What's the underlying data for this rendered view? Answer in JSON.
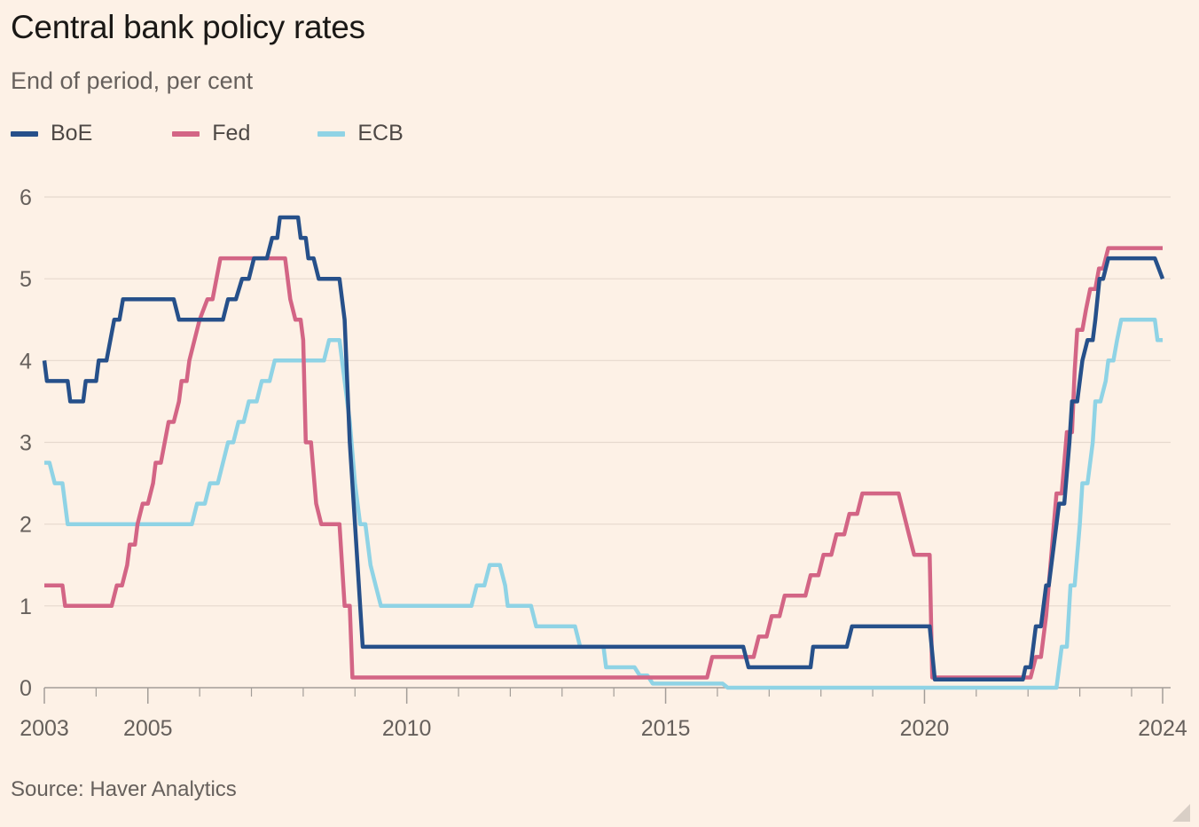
{
  "title": "Central bank policy rates",
  "subtitle": "End of period, per cent",
  "source": "Source: Haver Analytics",
  "colors": {
    "BoE": "#26508a",
    "Fed": "#d36585",
    "ECB": "#8fd3e5",
    "grid": "#e6d9ce",
    "axis": "#a39d98",
    "text": "#66605c"
  },
  "legend": [
    {
      "name": "BoE",
      "color": "#26508a"
    },
    {
      "name": "Fed",
      "color": "#d36585"
    },
    {
      "name": "ECB",
      "color": "#8fd3e5"
    }
  ],
  "chart_data": {
    "type": "line",
    "title": "Central bank policy rates",
    "subtitle": "End of period, per cent",
    "xlim": [
      2003.0,
      2024.6
    ],
    "ylim": [
      0,
      6
    ],
    "yticks": [
      0,
      1,
      2,
      3,
      4,
      5,
      6
    ],
    "xtick_labels": [
      "2003",
      "2005",
      "2010",
      "2015",
      "2020",
      "2024"
    ],
    "xtick_values": [
      2003.0,
      2005.0,
      2010.0,
      2015.0,
      2020.0,
      2024.6
    ],
    "minor_xticks": [
      2004,
      2006,
      2007,
      2008,
      2009,
      2011,
      2012,
      2013,
      2014,
      2016,
      2017,
      2018,
      2019,
      2021,
      2022,
      2023,
      2024
    ],
    "grid": true,
    "legend_position": "top-left",
    "series": [
      {
        "name": "BoE",
        "color": "#26508a",
        "points": [
          [
            2003.0,
            4.0
          ],
          [
            2003.05,
            3.75
          ],
          [
            2003.45,
            3.75
          ],
          [
            2003.5,
            3.5
          ],
          [
            2003.75,
            3.5
          ],
          [
            2003.8,
            3.75
          ],
          [
            2004.0,
            3.75
          ],
          [
            2004.05,
            4.0
          ],
          [
            2004.2,
            4.0
          ],
          [
            2004.35,
            4.5
          ],
          [
            2004.45,
            4.5
          ],
          [
            2004.52,
            4.75
          ],
          [
            2005.5,
            4.75
          ],
          [
            2005.6,
            4.5
          ],
          [
            2006.45,
            4.5
          ],
          [
            2006.55,
            4.75
          ],
          [
            2006.7,
            4.75
          ],
          [
            2006.82,
            5.0
          ],
          [
            2006.95,
            5.0
          ],
          [
            2007.05,
            5.25
          ],
          [
            2007.3,
            5.25
          ],
          [
            2007.4,
            5.5
          ],
          [
            2007.5,
            5.5
          ],
          [
            2007.55,
            5.75
          ],
          [
            2007.9,
            5.75
          ],
          [
            2007.95,
            5.5
          ],
          [
            2008.05,
            5.5
          ],
          [
            2008.1,
            5.25
          ],
          [
            2008.2,
            5.25
          ],
          [
            2008.3,
            5.0
          ],
          [
            2008.7,
            5.0
          ],
          [
            2008.8,
            4.5
          ],
          [
            2008.9,
            3.0
          ],
          [
            2009.0,
            2.0
          ],
          [
            2009.1,
            1.0
          ],
          [
            2009.15,
            0.5
          ],
          [
            2016.5,
            0.5
          ],
          [
            2016.6,
            0.25
          ],
          [
            2017.8,
            0.25
          ],
          [
            2017.85,
            0.5
          ],
          [
            2018.5,
            0.5
          ],
          [
            2018.6,
            0.75
          ],
          [
            2020.1,
            0.75
          ],
          [
            2020.2,
            0.1
          ],
          [
            2021.9,
            0.1
          ],
          [
            2021.95,
            0.25
          ],
          [
            2022.05,
            0.25
          ],
          [
            2022.1,
            0.5
          ],
          [
            2022.15,
            0.75
          ],
          [
            2022.25,
            0.75
          ],
          [
            2022.35,
            1.25
          ],
          [
            2022.4,
            1.25
          ],
          [
            2022.5,
            1.75
          ],
          [
            2022.6,
            2.25
          ],
          [
            2022.7,
            2.25
          ],
          [
            2022.8,
            3.0
          ],
          [
            2022.85,
            3.5
          ],
          [
            2022.95,
            3.5
          ],
          [
            2023.05,
            4.0
          ],
          [
            2023.15,
            4.25
          ],
          [
            2023.25,
            4.25
          ],
          [
            2023.3,
            4.5
          ],
          [
            2023.38,
            5.0
          ],
          [
            2023.45,
            5.0
          ],
          [
            2023.55,
            5.25
          ],
          [
            2024.45,
            5.25
          ],
          [
            2024.6,
            5.0
          ]
        ]
      },
      {
        "name": "Fed",
        "color": "#d36585",
        "points": [
          [
            2003.0,
            1.25
          ],
          [
            2003.35,
            1.25
          ],
          [
            2003.4,
            1.0
          ],
          [
            2004.3,
            1.0
          ],
          [
            2004.4,
            1.25
          ],
          [
            2004.5,
            1.25
          ],
          [
            2004.6,
            1.5
          ],
          [
            2004.65,
            1.75
          ],
          [
            2004.75,
            1.75
          ],
          [
            2004.8,
            2.0
          ],
          [
            2004.9,
            2.25
          ],
          [
            2005.0,
            2.25
          ],
          [
            2005.1,
            2.5
          ],
          [
            2005.15,
            2.75
          ],
          [
            2005.25,
            2.75
          ],
          [
            2005.4,
            3.25
          ],
          [
            2005.5,
            3.25
          ],
          [
            2005.6,
            3.5
          ],
          [
            2005.65,
            3.75
          ],
          [
            2005.75,
            3.75
          ],
          [
            2005.8,
            4.0
          ],
          [
            2006.0,
            4.5
          ],
          [
            2006.15,
            4.75
          ],
          [
            2006.25,
            4.75
          ],
          [
            2006.4,
            5.25
          ],
          [
            2007.65,
            5.25
          ],
          [
            2007.75,
            4.75
          ],
          [
            2007.85,
            4.5
          ],
          [
            2007.95,
            4.5
          ],
          [
            2008.0,
            4.25
          ],
          [
            2008.05,
            3.0
          ],
          [
            2008.15,
            3.0
          ],
          [
            2008.25,
            2.25
          ],
          [
            2008.35,
            2.0
          ],
          [
            2008.7,
            2.0
          ],
          [
            2008.8,
            1.0
          ],
          [
            2008.9,
            1.0
          ],
          [
            2008.95,
            0.125
          ],
          [
            2015.8,
            0.125
          ],
          [
            2015.9,
            0.375
          ],
          [
            2016.7,
            0.375
          ],
          [
            2016.8,
            0.625
          ],
          [
            2016.95,
            0.625
          ],
          [
            2017.05,
            0.875
          ],
          [
            2017.2,
            0.875
          ],
          [
            2017.3,
            1.125
          ],
          [
            2017.7,
            1.125
          ],
          [
            2017.8,
            1.375
          ],
          [
            2017.95,
            1.375
          ],
          [
            2018.05,
            1.625
          ],
          [
            2018.2,
            1.625
          ],
          [
            2018.3,
            1.875
          ],
          [
            2018.45,
            1.875
          ],
          [
            2018.55,
            2.125
          ],
          [
            2018.7,
            2.125
          ],
          [
            2018.8,
            2.375
          ],
          [
            2019.5,
            2.375
          ],
          [
            2019.6,
            2.125
          ],
          [
            2019.7,
            1.875
          ],
          [
            2019.8,
            1.625
          ],
          [
            2020.1,
            1.625
          ],
          [
            2020.15,
            0.125
          ],
          [
            2022.05,
            0.125
          ],
          [
            2022.15,
            0.375
          ],
          [
            2022.25,
            0.375
          ],
          [
            2022.35,
            0.875
          ],
          [
            2022.45,
            1.625
          ],
          [
            2022.55,
            2.375
          ],
          [
            2022.65,
            2.375
          ],
          [
            2022.75,
            3.125
          ],
          [
            2022.85,
            3.125
          ],
          [
            2022.9,
            3.875
          ],
          [
            2022.95,
            4.375
          ],
          [
            2023.05,
            4.375
          ],
          [
            2023.12,
            4.625
          ],
          [
            2023.2,
            4.875
          ],
          [
            2023.3,
            4.875
          ],
          [
            2023.37,
            5.125
          ],
          [
            2023.45,
            5.125
          ],
          [
            2023.55,
            5.375
          ],
          [
            2024.6,
            5.375
          ]
        ]
      },
      {
        "name": "ECB",
        "color": "#8fd3e5",
        "points": [
          [
            2003.0,
            2.75
          ],
          [
            2003.1,
            2.75
          ],
          [
            2003.2,
            2.5
          ],
          [
            2003.35,
            2.5
          ],
          [
            2003.45,
            2.0
          ],
          [
            2005.85,
            2.0
          ],
          [
            2005.95,
            2.25
          ],
          [
            2006.1,
            2.25
          ],
          [
            2006.2,
            2.5
          ],
          [
            2006.35,
            2.5
          ],
          [
            2006.45,
            2.75
          ],
          [
            2006.55,
            3.0
          ],
          [
            2006.65,
            3.0
          ],
          [
            2006.75,
            3.25
          ],
          [
            2006.85,
            3.25
          ],
          [
            2006.95,
            3.5
          ],
          [
            2007.1,
            3.5
          ],
          [
            2007.2,
            3.75
          ],
          [
            2007.35,
            3.75
          ],
          [
            2007.45,
            4.0
          ],
          [
            2008.4,
            4.0
          ],
          [
            2008.5,
            4.25
          ],
          [
            2008.7,
            4.25
          ],
          [
            2008.8,
            3.75
          ],
          [
            2008.9,
            3.25
          ],
          [
            2009.0,
            2.5
          ],
          [
            2009.1,
            2.0
          ],
          [
            2009.2,
            2.0
          ],
          [
            2009.3,
            1.5
          ],
          [
            2009.4,
            1.25
          ],
          [
            2009.5,
            1.0
          ],
          [
            2011.25,
            1.0
          ],
          [
            2011.35,
            1.25
          ],
          [
            2011.5,
            1.25
          ],
          [
            2011.6,
            1.5
          ],
          [
            2011.8,
            1.5
          ],
          [
            2011.9,
            1.25
          ],
          [
            2011.95,
            1.0
          ],
          [
            2012.4,
            1.0
          ],
          [
            2012.5,
            0.75
          ],
          [
            2013.25,
            0.75
          ],
          [
            2013.35,
            0.5
          ],
          [
            2013.8,
            0.5
          ],
          [
            2013.85,
            0.25
          ],
          [
            2014.4,
            0.25
          ],
          [
            2014.5,
            0.15
          ],
          [
            2014.65,
            0.15
          ],
          [
            2014.75,
            0.05
          ],
          [
            2016.1,
            0.05
          ],
          [
            2016.2,
            0.0
          ],
          [
            2022.55,
            0.0
          ],
          [
            2022.65,
            0.5
          ],
          [
            2022.75,
            0.5
          ],
          [
            2022.82,
            1.25
          ],
          [
            2022.9,
            1.25
          ],
          [
            2023.0,
            2.0
          ],
          [
            2023.05,
            2.5
          ],
          [
            2023.15,
            2.5
          ],
          [
            2023.25,
            3.0
          ],
          [
            2023.3,
            3.5
          ],
          [
            2023.4,
            3.5
          ],
          [
            2023.5,
            3.75
          ],
          [
            2023.55,
            4.0
          ],
          [
            2023.65,
            4.0
          ],
          [
            2023.72,
            4.25
          ],
          [
            2023.8,
            4.5
          ],
          [
            2024.45,
            4.5
          ],
          [
            2024.5,
            4.25
          ],
          [
            2024.6,
            4.25
          ]
        ]
      }
    ]
  }
}
